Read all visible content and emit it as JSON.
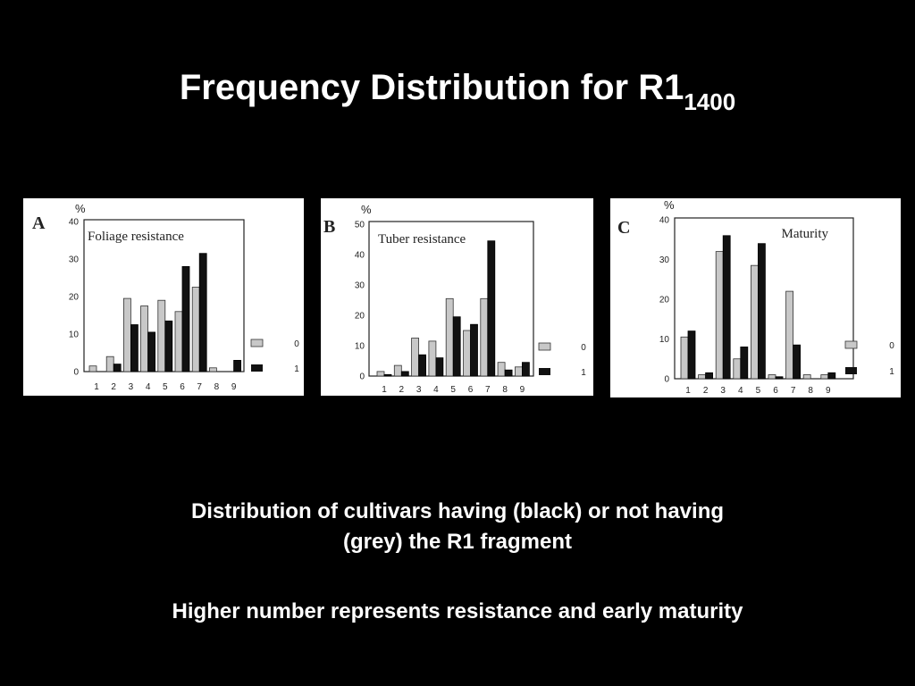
{
  "title": {
    "main": "Frequency Distribution for R1",
    "subscript": "1400"
  },
  "captions": {
    "line1": "Distribution of cultivars having (black) or not having",
    "line2": "(grey) the R1 fragment",
    "line3": "Higher number represents resistance and early maturity"
  },
  "colors": {
    "background": "#000000",
    "grey_bar": "#c8c8c8",
    "black_bar": "#111111"
  },
  "chart_data": [
    {
      "type": "bar",
      "panel_letter": "A",
      "title": "Foliage resistance",
      "ylabel": "%",
      "categories": [
        "1",
        "2",
        "3",
        "4",
        "5",
        "6",
        "7",
        "8",
        "9"
      ],
      "yticks": [
        "0",
        "10",
        "20",
        "30",
        "40"
      ],
      "ylim": [
        0,
        40
      ],
      "series": [
        {
          "name": "0",
          "color": "grey",
          "values": [
            1.5,
            4,
            19.5,
            17.5,
            19,
            16,
            22.5,
            1,
            0
          ]
        },
        {
          "name": "1",
          "color": "black",
          "values": [
            0,
            2,
            12.5,
            10.5,
            13.5,
            28,
            31.5,
            0,
            3
          ]
        }
      ],
      "legend": [
        "0",
        "1"
      ],
      "legend_position": "right"
    },
    {
      "type": "bar",
      "panel_letter": "B",
      "title": "Tuber resistance",
      "ylabel": "%",
      "categories": [
        "1",
        "2",
        "3",
        "4",
        "5",
        "6",
        "7",
        "8",
        "9"
      ],
      "yticks": [
        "0",
        "10",
        "20",
        "30",
        "40",
        "50"
      ],
      "ylim": [
        0,
        50
      ],
      "series": [
        {
          "name": "0",
          "color": "grey",
          "values": [
            1.5,
            3.5,
            12.5,
            11.5,
            25.5,
            15,
            25.5,
            4.5,
            3
          ]
        },
        {
          "name": "1",
          "color": "black",
          "values": [
            0.5,
            1.5,
            7,
            6,
            19.5,
            17,
            44.5,
            2,
            4.5
          ]
        }
      ],
      "legend": [
        "0",
        "1"
      ],
      "legend_position": "right"
    },
    {
      "type": "bar",
      "panel_letter": "C",
      "title": "Maturity",
      "ylabel": "%",
      "categories": [
        "1",
        "2",
        "3",
        "4",
        "5",
        "6",
        "7",
        "8",
        "9"
      ],
      "yticks": [
        "0",
        "10",
        "20",
        "30",
        "40"
      ],
      "ylim": [
        0,
        40
      ],
      "series": [
        {
          "name": "0",
          "color": "grey",
          "values": [
            10.5,
            1,
            32,
            5,
            28.5,
            1,
            22,
            1,
            1
          ]
        },
        {
          "name": "1",
          "color": "black",
          "values": [
            12,
            1.5,
            36,
            8,
            34,
            0.5,
            8.5,
            0,
            1.5
          ]
        }
      ],
      "legend": [
        "0",
        "1"
      ],
      "legend_position": "right"
    }
  ]
}
